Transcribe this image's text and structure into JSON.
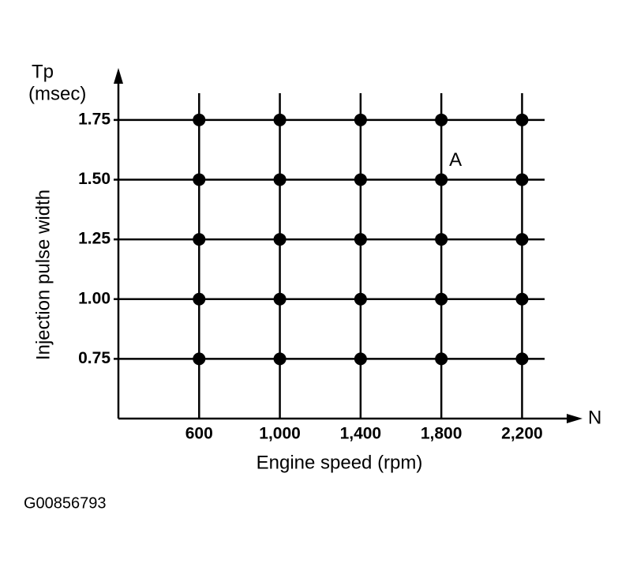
{
  "chart_data": {
    "type": "scatter",
    "y_axis_symbol": "Tp",
    "y_axis_unit": "(msec)",
    "y_label": "Injection pulse width",
    "x_axis_symbol": "N",
    "x_label": "Engine speed (rpm)",
    "x": [
      600,
      1000,
      1400,
      1800,
      2200,
      600,
      1000,
      1400,
      1800,
      2200,
      600,
      1000,
      1400,
      1800,
      2200,
      600,
      1000,
      1400,
      1800,
      2200,
      600,
      1000,
      1400,
      1800,
      2200
    ],
    "values": [
      1.75,
      1.75,
      1.75,
      1.75,
      1.75,
      1.5,
      1.5,
      1.5,
      1.5,
      1.5,
      1.25,
      1.25,
      1.25,
      1.25,
      1.25,
      1,
      1,
      1,
      1,
      1,
      0.75,
      0.75,
      0.75,
      0.75,
      0.75
    ],
    "color": "#000000",
    "xlim": [
      200,
      2300
    ],
    "xticks": [
      600,
      {
        "value": 1000,
        "label": "1,000"
      },
      {
        "value": 1400,
        "label": "1,400"
      },
      {
        "value": 1800,
        "label": "1,800"
      },
      {
        "value": 2200,
        "label": "2,200"
      }
    ],
    "ylim": [
      0.5,
      1.875
    ],
    "yticks": [
      1.75,
      {
        "value": 1.5,
        "label": "1.50"
      },
      1.25,
      {
        "value": 1,
        "label": "1.00"
      },
      0.75
    ],
    "grid": true,
    "annotations": [
      {
        "text": "A",
        "x": 1800,
        "y": 1.5
      }
    ],
    "figure_id": "G00856793"
  }
}
